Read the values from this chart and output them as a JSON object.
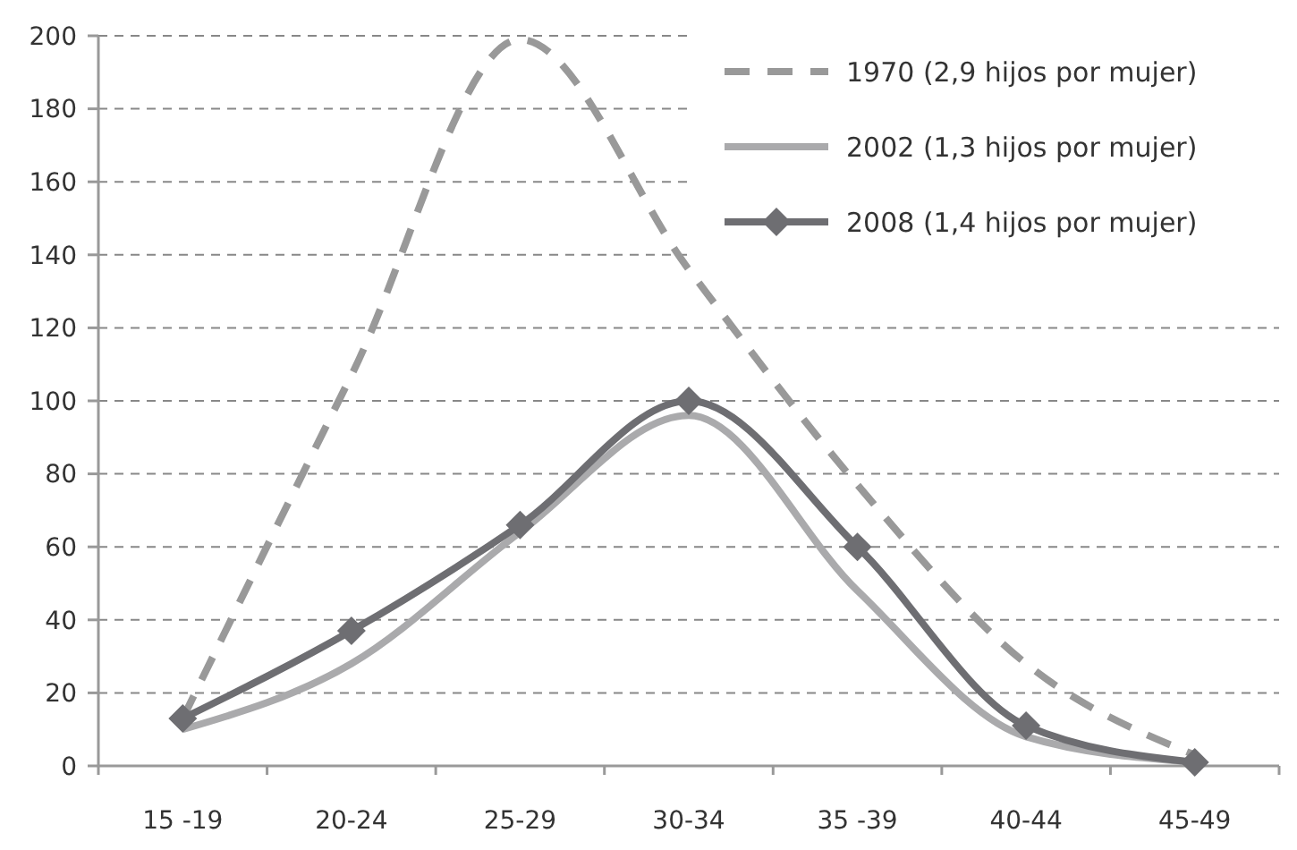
{
  "chart_data": {
    "type": "line",
    "categories": [
      "15 -19",
      "20-24",
      "25-29",
      "30-34",
      "35 -39",
      "40-44",
      "45-49"
    ],
    "series": [
      {
        "name": "1970 (2,9 hijos por mujer)",
        "color": "#999999",
        "line_style": "dashed",
        "marker": "none",
        "values": [
          13,
          107,
          199,
          136,
          77,
          28,
          3
        ]
      },
      {
        "name": "2002 (1,3 hijos por mujer)",
        "color": "#aaaaac",
        "line_style": "solid",
        "marker": "none",
        "values": [
          10,
          28,
          64,
          96,
          48,
          8,
          1
        ]
      },
      {
        "name": "2008 (1,4 hijos por mujer)",
        "color": "#6e6e72",
        "line_style": "solid",
        "marker": "diamond",
        "values": [
          13,
          37,
          66,
          100,
          60,
          11,
          1
        ]
      }
    ],
    "ylim": [
      0,
      200
    ],
    "yticks": [
      0,
      20,
      40,
      60,
      80,
      100,
      120,
      140,
      160,
      180,
      200
    ],
    "grid": "y",
    "legend": "top right"
  }
}
